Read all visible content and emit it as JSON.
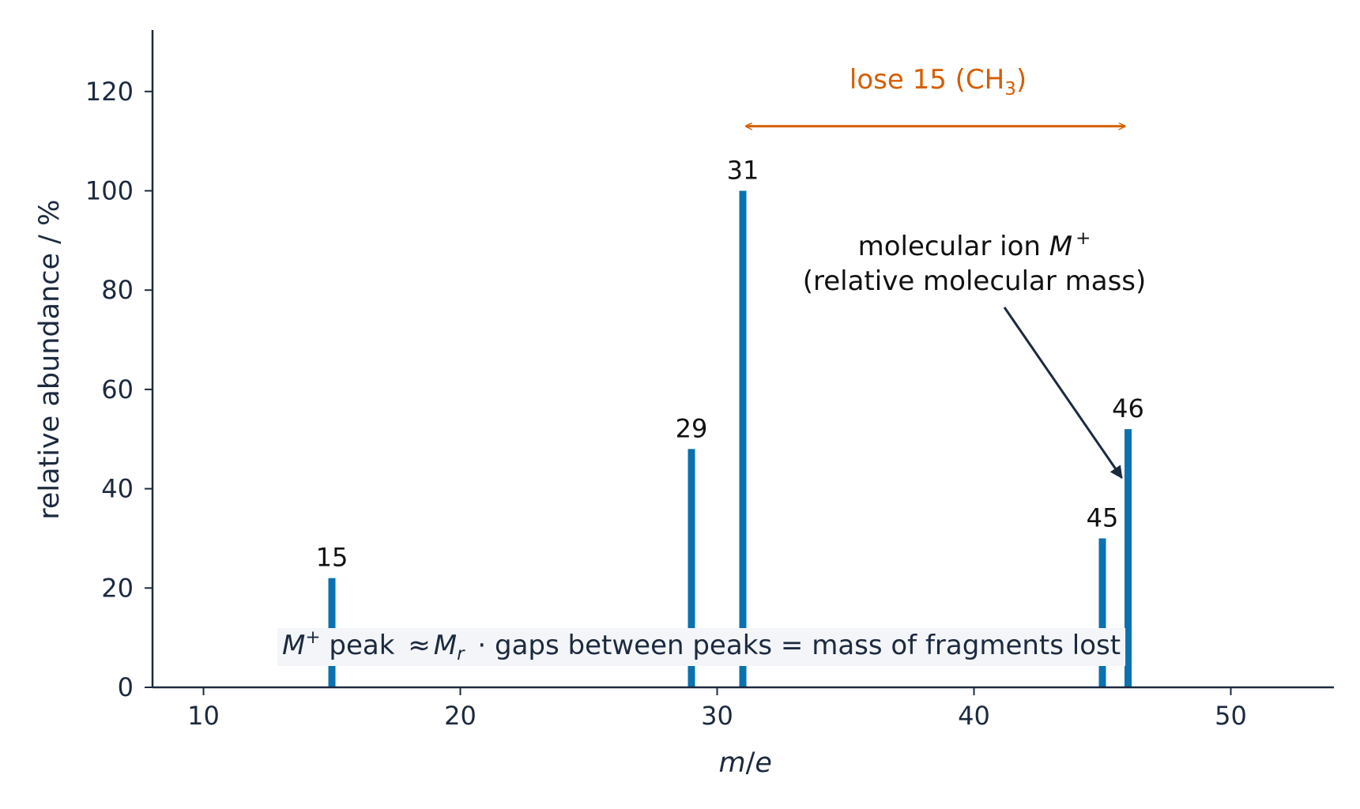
{
  "chart_data": {
    "type": "bar",
    "xlabel_parts": {
      "m": "m",
      "slash": "/",
      "e": "e"
    },
    "ylabel": "relative abundance / %",
    "xlim": [
      8,
      54
    ],
    "ylim": [
      0,
      132
    ],
    "xticks": [
      10,
      20,
      30,
      40,
      50
    ],
    "yticks": [
      0,
      20,
      40,
      60,
      80,
      100,
      120
    ],
    "grid": false,
    "bar_color": "#0a72b0",
    "series": [
      {
        "x": [
          15,
          29,
          31,
          45,
          46
        ],
        "values": [
          22,
          48,
          100,
          30,
          52
        ],
        "labels": [
          "15",
          "29",
          "31",
          "45",
          "46"
        ]
      }
    ],
    "annotations": {
      "loss_arrow": {
        "from_x": 31,
        "to_x": 46,
        "y": 113,
        "color": "#d55e00",
        "text_main": "lose 15 (CH",
        "text_sub": "3",
        "text_end": ")"
      },
      "molecular_ion": {
        "line1_text": "molecular ion ",
        "line1_symbol": "M",
        "line1_sup": "+",
        "line2": "(relative molecular mass)",
        "arrow_target_x": 46,
        "arrow_target_y": 43
      },
      "footer_note": {
        "symbol_m": "M",
        "sup_plus": "+",
        "peak_text": " peak ",
        "approx": "≈",
        "mr_symbol": "M",
        "mr_sub": "r",
        "rest": " · gaps between peaks = mass of fragments lost"
      }
    }
  }
}
